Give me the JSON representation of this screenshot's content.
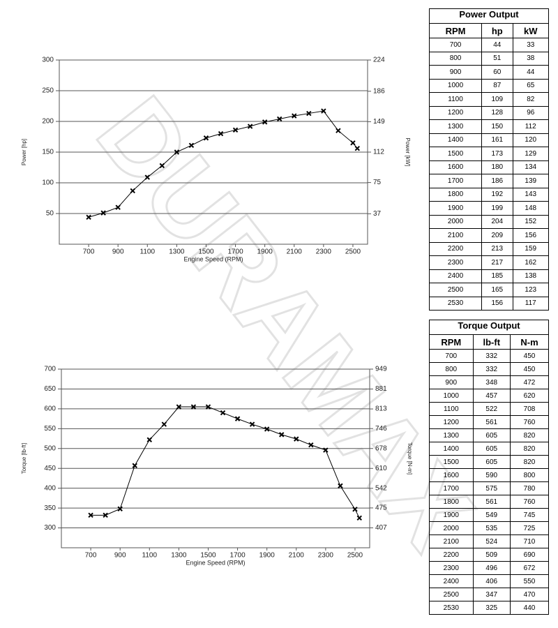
{
  "watermark": "DURAMAX",
  "chart_data": [
    {
      "type": "line",
      "xlabel": "Engine Speed (RPM)",
      "ylabel": "Power [hp]",
      "y2label": "Power [kW]",
      "color": "#000000",
      "x": [
        700,
        800,
        900,
        1000,
        1100,
        1200,
        1300,
        1400,
        1500,
        1600,
        1700,
        1800,
        1900,
        2000,
        2100,
        2200,
        2300,
        2400,
        2500,
        2530
      ],
      "values": [
        44,
        51,
        60,
        87,
        109,
        128,
        150,
        161,
        173,
        180,
        186,
        192,
        199,
        204,
        209,
        213,
        217,
        185,
        165,
        156
      ],
      "xlim": [
        500,
        2600
      ],
      "xticks": [
        700,
        900,
        1100,
        1300,
        1500,
        1700,
        1900,
        2100,
        2300,
        2500
      ],
      "ylim": [
        0,
        300
      ],
      "yticks": [
        50,
        100,
        150,
        200,
        250,
        300
      ],
      "y2lim": [
        0,
        224
      ],
      "y2ticks": [
        37,
        75,
        112,
        149,
        186,
        224
      ],
      "grid": true
    },
    {
      "type": "line",
      "xlabel": "Engine Speed (RPM)",
      "ylabel": "Torque [lb-ft]",
      "y2label": "Torque [N-m]",
      "color": "#000000",
      "x": [
        700,
        800,
        900,
        1000,
        1100,
        1200,
        1300,
        1400,
        1500,
        1600,
        1700,
        1800,
        1900,
        2000,
        2100,
        2200,
        2300,
        2400,
        2500,
        2530
      ],
      "values": [
        332,
        332,
        348,
        457,
        522,
        561,
        605,
        605,
        605,
        590,
        575,
        561,
        549,
        535,
        524,
        509,
        496,
        406,
        347,
        325
      ],
      "xlim": [
        500,
        2600
      ],
      "xticks": [
        700,
        900,
        1100,
        1300,
        1500,
        1700,
        1900,
        2100,
        2300,
        2500
      ],
      "ylim": [
        250,
        700
      ],
      "yticks": [
        300,
        350,
        400,
        450,
        500,
        550,
        600,
        650,
        700
      ],
      "y2lim": [
        339,
        949
      ],
      "y2ticks": [
        407,
        475,
        542,
        610,
        678,
        746,
        813,
        881,
        949
      ],
      "grid": true
    }
  ],
  "power_table": {
    "title": "Power Output",
    "headers": [
      "RPM",
      "hp",
      "kW"
    ],
    "rows": [
      [
        700,
        44,
        33
      ],
      [
        800,
        51,
        38
      ],
      [
        900,
        60,
        44
      ],
      [
        1000,
        87,
        65
      ],
      [
        1100,
        109,
        82
      ],
      [
        1200,
        128,
        96
      ],
      [
        1300,
        150,
        112
      ],
      [
        1400,
        161,
        120
      ],
      [
        1500,
        173,
        129
      ],
      [
        1600,
        180,
        134
      ],
      [
        1700,
        186,
        139
      ],
      [
        1800,
        192,
        143
      ],
      [
        1900,
        199,
        148
      ],
      [
        2000,
        204,
        152
      ],
      [
        2100,
        209,
        156
      ],
      [
        2200,
        213,
        159
      ],
      [
        2300,
        217,
        162
      ],
      [
        2400,
        185,
        138
      ],
      [
        2500,
        165,
        123
      ],
      [
        2530,
        156,
        117
      ]
    ]
  },
  "torque_table": {
    "title": "Torque Output",
    "headers": [
      "RPM",
      "lb-ft",
      "N-m"
    ],
    "rows": [
      [
        700,
        332,
        450
      ],
      [
        800,
        332,
        450
      ],
      [
        900,
        348,
        472
      ],
      [
        1000,
        457,
        620
      ],
      [
        1100,
        522,
        708
      ],
      [
        1200,
        561,
        760
      ],
      [
        1300,
        605,
        820
      ],
      [
        1400,
        605,
        820
      ],
      [
        1500,
        605,
        820
      ],
      [
        1600,
        590,
        800
      ],
      [
        1700,
        575,
        780
      ],
      [
        1800,
        561,
        760
      ],
      [
        1900,
        549,
        745
      ],
      [
        2000,
        535,
        725
      ],
      [
        2100,
        524,
        710
      ],
      [
        2200,
        509,
        690
      ],
      [
        2300,
        496,
        672
      ],
      [
        2400,
        406,
        550
      ],
      [
        2500,
        347,
        470
      ],
      [
        2530,
        325,
        440
      ]
    ]
  }
}
